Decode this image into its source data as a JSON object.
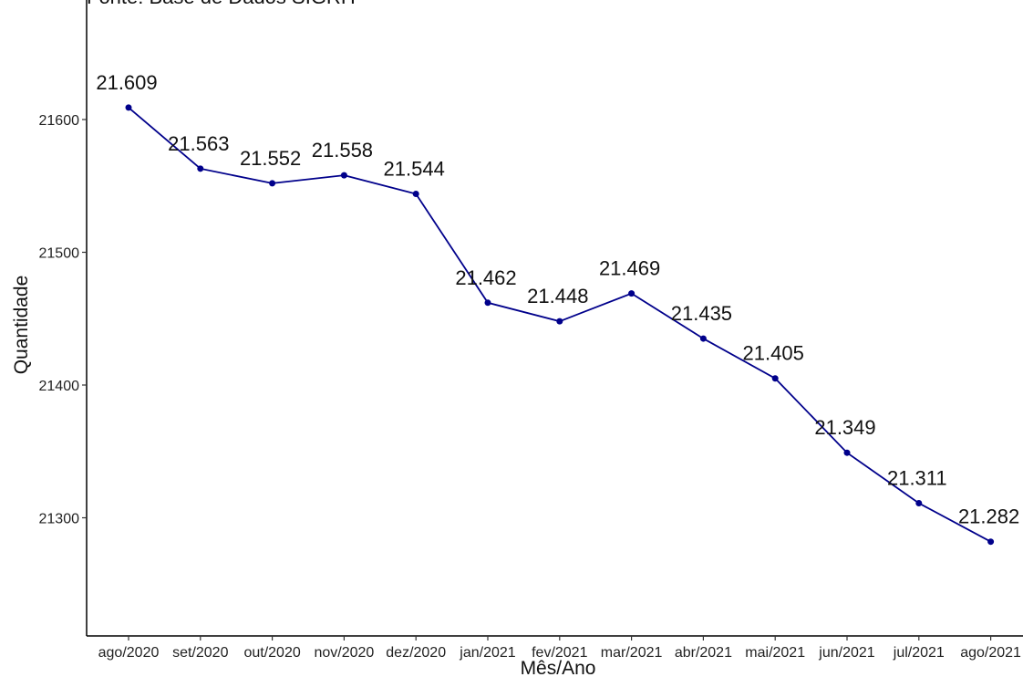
{
  "caption": "Fonte: Base de Dados SIGRH",
  "chart_data": {
    "type": "line",
    "xlabel": "Mês/Ano",
    "ylabel": "Quantidade",
    "categories": [
      "ago/2020",
      "set/2020",
      "out/2020",
      "nov/2020",
      "dez/2020",
      "jan/2021",
      "fev/2021",
      "mar/2021",
      "abr/2021",
      "mai/2021",
      "jun/2021",
      "jul/2021",
      "ago/2021"
    ],
    "values": [
      21609,
      21563,
      21552,
      21558,
      21544,
      21462,
      21448,
      21469,
      21435,
      21405,
      21349,
      21311,
      21282
    ],
    "data_labels": [
      "21.609",
      "21.563",
      "21.552",
      "21.558",
      "21.544",
      "21.462",
      "21.448",
      "21.469",
      "21.435",
      "21.405",
      "21.349",
      "21.311",
      "21.282"
    ],
    "yticks": [
      21300,
      21400,
      21500,
      21600
    ],
    "ylim": [
      21220,
      21685
    ],
    "grid": false,
    "line_color": "#00008B",
    "point_color": "#00008B"
  }
}
